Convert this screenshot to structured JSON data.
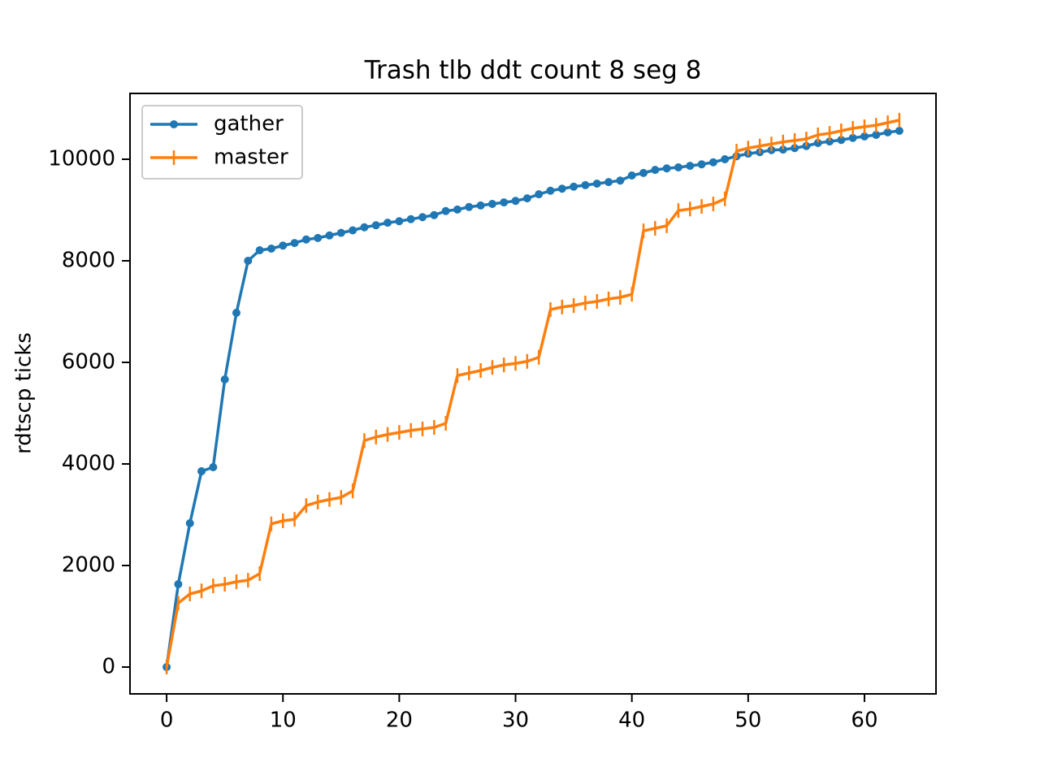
{
  "chart_data": {
    "type": "line",
    "title": "Trash tlb ddt count 8 seg 8",
    "y_label": "rdtscp ticks",
    "x": [
      0,
      1,
      2,
      3,
      4,
      5,
      6,
      7,
      8,
      9,
      10,
      11,
      12,
      13,
      14,
      15,
      16,
      17,
      18,
      19,
      20,
      21,
      22,
      23,
      24,
      25,
      26,
      27,
      28,
      29,
      30,
      31,
      32,
      33,
      34,
      35,
      36,
      37,
      38,
      39,
      40,
      41,
      42,
      43,
      44,
      45,
      46,
      47,
      48,
      49,
      50,
      51,
      52,
      53,
      54,
      55,
      56,
      57,
      58,
      59,
      60,
      61,
      62,
      63
    ],
    "series": [
      {
        "name": "gather",
        "color": "#1f77b4",
        "marker": "dot",
        "values": [
          0,
          1632,
          2832,
          3856,
          3936,
          5664,
          6976,
          8000,
          8208,
          8240,
          8300,
          8350,
          8420,
          8450,
          8500,
          8550,
          8600,
          8660,
          8700,
          8750,
          8780,
          8820,
          8860,
          8900,
          8980,
          9010,
          9060,
          9090,
          9120,
          9150,
          9180,
          9230,
          9310,
          9380,
          9420,
          9460,
          9490,
          9520,
          9550,
          9580,
          9680,
          9730,
          9790,
          9820,
          9840,
          9870,
          9900,
          9940,
          10000,
          10060,
          10110,
          10140,
          10180,
          10190,
          10220,
          10260,
          10320,
          10350,
          10380,
          10420,
          10450,
          10480,
          10530,
          10560
        ]
      },
      {
        "name": "master",
        "color": "#ff7f0e",
        "marker": "vline",
        "values": [
          0,
          1260,
          1440,
          1500,
          1600,
          1630,
          1680,
          1710,
          1840,
          2820,
          2880,
          2910,
          3180,
          3250,
          3300,
          3340,
          3470,
          4460,
          4530,
          4580,
          4620,
          4660,
          4690,
          4720,
          4800,
          5740,
          5790,
          5840,
          5900,
          5950,
          5980,
          6020,
          6100,
          7040,
          7090,
          7120,
          7170,
          7200,
          7250,
          7280,
          7340,
          8590,
          8640,
          8690,
          8990,
          9020,
          9070,
          9120,
          9220,
          10160,
          10220,
          10260,
          10300,
          10340,
          10370,
          10400,
          10480,
          10510,
          10560,
          10610,
          10640,
          10670,
          10720,
          10770
        ]
      }
    ],
    "xlim": [
      -3.15,
      66.15
    ],
    "ylim": [
      -528,
      11296
    ],
    "xticks": [
      0,
      10,
      20,
      30,
      40,
      50,
      60
    ],
    "yticks": [
      0,
      2000,
      4000,
      6000,
      8000,
      10000
    ],
    "grid": false,
    "legend": "upper left"
  }
}
